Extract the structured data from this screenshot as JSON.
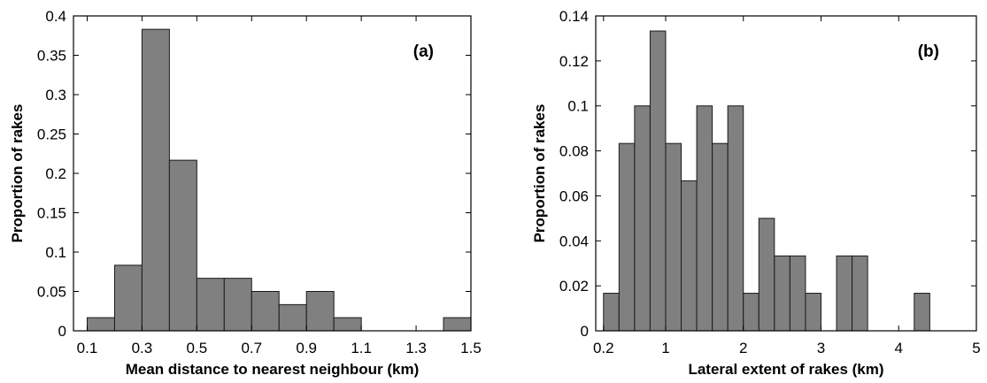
{
  "chart_data": [
    {
      "type": "bar",
      "panel_label": "(a)",
      "xlabel": "Mean distance to nearest neighbour (km)",
      "ylabel": "Proportion of rakes",
      "xlim": [
        0.05,
        1.5
      ],
      "ylim": [
        0,
        0.4
      ],
      "bin_width": 0.1,
      "bins": [
        {
          "start": 0.1,
          "value": 0.0167
        },
        {
          "start": 0.2,
          "value": 0.0833
        },
        {
          "start": 0.3,
          "value": 0.383
        },
        {
          "start": 0.4,
          "value": 0.2167
        },
        {
          "start": 0.5,
          "value": 0.0667
        },
        {
          "start": 0.6,
          "value": 0.0667
        },
        {
          "start": 0.7,
          "value": 0.05
        },
        {
          "start": 0.8,
          "value": 0.0333
        },
        {
          "start": 0.9,
          "value": 0.05
        },
        {
          "start": 1.0,
          "value": 0.0167
        },
        {
          "start": 1.4,
          "value": 0.0167
        }
      ],
      "xticks": [
        0.1,
        0.3,
        0.5,
        0.7,
        0.9,
        1.1,
        1.3,
        1.5
      ],
      "xtick_labels": [
        "0.1",
        "0.3",
        "0.5",
        "0.7",
        "0.9",
        "1.1",
        "1.3",
        "1.5"
      ],
      "yticks": [
        0,
        0.05,
        0.1,
        0.15,
        0.2,
        0.25,
        0.3,
        0.35,
        0.4
      ],
      "ytick_labels": [
        "0",
        "0.05",
        "0.1",
        "0.15",
        "0.2",
        "0.25",
        "0.3",
        "0.35",
        "0.4"
      ],
      "grid": false,
      "bar_color": "#808080"
    },
    {
      "type": "bar",
      "panel_label": "(b)",
      "xlabel": "Lateral extent of rakes (km)",
      "ylabel": "Proportion of rakes",
      "xlim": [
        0.1,
        5
      ],
      "ylim": [
        0,
        0.14
      ],
      "bin_width": 0.2,
      "bins": [
        {
          "start": 0.2,
          "value": 0.0167
        },
        {
          "start": 0.4,
          "value": 0.0833
        },
        {
          "start": 0.6,
          "value": 0.1
        },
        {
          "start": 0.8,
          "value": 0.1333
        },
        {
          "start": 1.0,
          "value": 0.0833
        },
        {
          "start": 1.2,
          "value": 0.0667
        },
        {
          "start": 1.4,
          "value": 0.1
        },
        {
          "start": 1.6,
          "value": 0.0833
        },
        {
          "start": 1.8,
          "value": 0.1
        },
        {
          "start": 2.0,
          "value": 0.0167
        },
        {
          "start": 2.2,
          "value": 0.05
        },
        {
          "start": 2.4,
          "value": 0.0333
        },
        {
          "start": 2.6,
          "value": 0.0333
        },
        {
          "start": 2.8,
          "value": 0.0167
        },
        {
          "start": 3.2,
          "value": 0.0333
        },
        {
          "start": 3.4,
          "value": 0.0333
        },
        {
          "start": 4.2,
          "value": 0.0167
        }
      ],
      "xticks": [
        0.2,
        1,
        2,
        3,
        4,
        5
      ],
      "xtick_labels": [
        "0.2",
        "1",
        "2",
        "3",
        "4",
        "5"
      ],
      "yticks": [
        0,
        0.02,
        0.04,
        0.06,
        0.08,
        0.1,
        0.12,
        0.14
      ],
      "ytick_labels": [
        "0",
        "0.02",
        "0.04",
        "0.06",
        "0.08",
        "0.1",
        "0.12",
        "0.14"
      ],
      "grid": false,
      "bar_color": "#808080"
    }
  ]
}
